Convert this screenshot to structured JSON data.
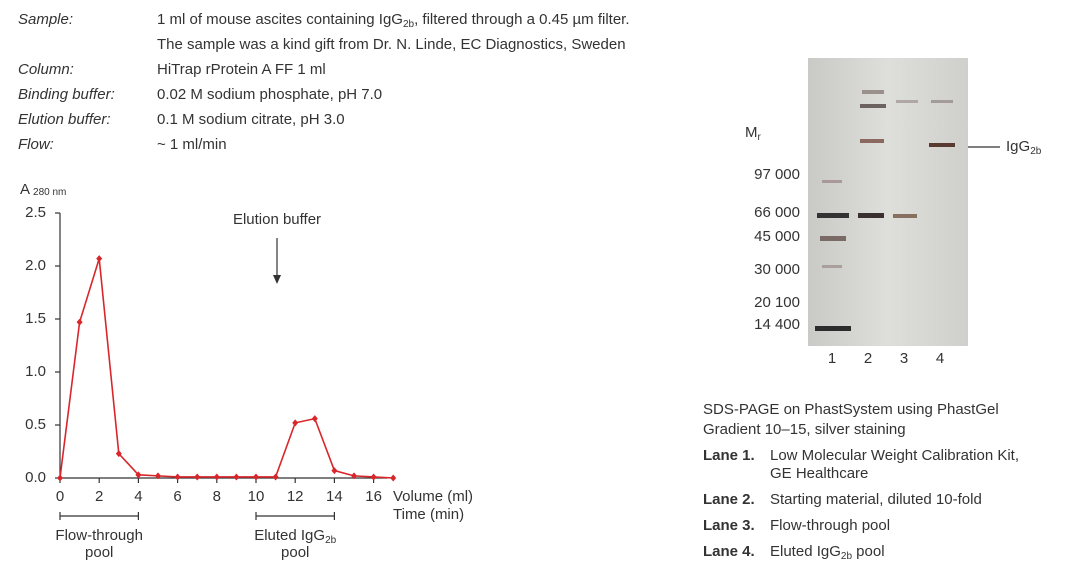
{
  "sample": {
    "label": "Sample:",
    "text": "1 ml of mouse ascites containing IgG",
    "sub": "2b",
    "text_after": ", filtered through a 0.45 µm filter.",
    "line2": "The sample was a kind gift from Dr. N. Linde, EC Diagnostics, Sweden"
  },
  "rows": [
    {
      "label": "Column:",
      "value": "HiTrap rProtein A FF 1 ml"
    },
    {
      "label": "Binding buffer:",
      "value": "0.02 M sodium phosphate, pH 7.0"
    },
    {
      "label": "Elution buffer:",
      "value": "0.1 M sodium citrate, pH 3.0"
    },
    {
      "label": "Flow:",
      "value": "~ 1 ml/min"
    }
  ],
  "chart_data": {
    "type": "line",
    "y_label": "A",
    "y_label_sub": "280 nm",
    "x_label": "Volume (ml)",
    "x_label2": "Time (min)",
    "annotation": "Elution buffer",
    "x": [
      0,
      1,
      2,
      3,
      4,
      5,
      6,
      7,
      8,
      9,
      10,
      11,
      12,
      13,
      14,
      15,
      16,
      17
    ],
    "series": [
      {
        "name": "A280",
        "color": "#d9262b",
        "values": [
          0,
          1.47,
          2.07,
          0.23,
          0.03,
          0.02,
          0.01,
          0.01,
          0.01,
          0.01,
          0.01,
          0.01,
          0.52,
          0.56,
          0.07,
          0.02,
          0.01,
          0
        ]
      }
    ],
    "xlim": [
      0,
      17
    ],
    "ylim": [
      0,
      2.5
    ],
    "xticks": [
      0,
      2,
      4,
      6,
      8,
      10,
      12,
      14,
      16
    ],
    "yticks": [
      {
        "value": 0,
        "label": "0.0"
      },
      0.5,
      {
        "value": 1,
        "label": "1.0"
      },
      1.5,
      {
        "value": 2,
        "label": "2.0"
      },
      2.5
    ],
    "pools": [
      {
        "label": "Flow-through",
        "label2": "pool",
        "range": [
          0,
          4
        ]
      },
      {
        "label": "Eluted IgG",
        "sub": "2b",
        "label2": "pool",
        "range": [
          10,
          14
        ]
      }
    ]
  },
  "gel": {
    "mr_label": "M",
    "mr_sub": "r",
    "markers": [
      "97 000",
      "66 000",
      "45 000",
      "30 000",
      "20 100",
      "14 400"
    ],
    "lanes": [
      "1",
      "2",
      "3",
      "4"
    ],
    "band_label": "IgG",
    "band_sub": "2b"
  },
  "caption": {
    "lines": [
      "SDS-PAGE on PhastSystem using PhastGel",
      "Gradient 10–15, silver staining"
    ],
    "lanes": [
      {
        "label": "Lane 1.",
        "text": [
          "Low Molecular Weight Calibration Kit,",
          "GE Healthcare"
        ]
      },
      {
        "label": "Lane 2.",
        "text": [
          "Starting material, diluted 10-fold"
        ]
      },
      {
        "label": "Lane 3.",
        "text": [
          "Flow-through pool"
        ]
      },
      {
        "label": "Lane 4.",
        "text": [
          "Eluted IgG"
        ],
        "sub": "2b",
        "after": " pool"
      }
    ]
  }
}
